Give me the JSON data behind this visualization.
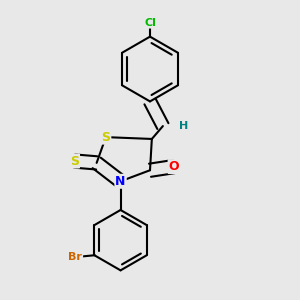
{
  "background_color": "#e8e8e8",
  "atom_colors": {
    "S": "#cccc00",
    "N": "#0000ff",
    "O": "#ff0000",
    "Cl": "#00bb00",
    "Br": "#cc6600",
    "H": "#008080",
    "C": "#000000"
  },
  "bond_color": "#000000",
  "bond_width": 1.5
}
